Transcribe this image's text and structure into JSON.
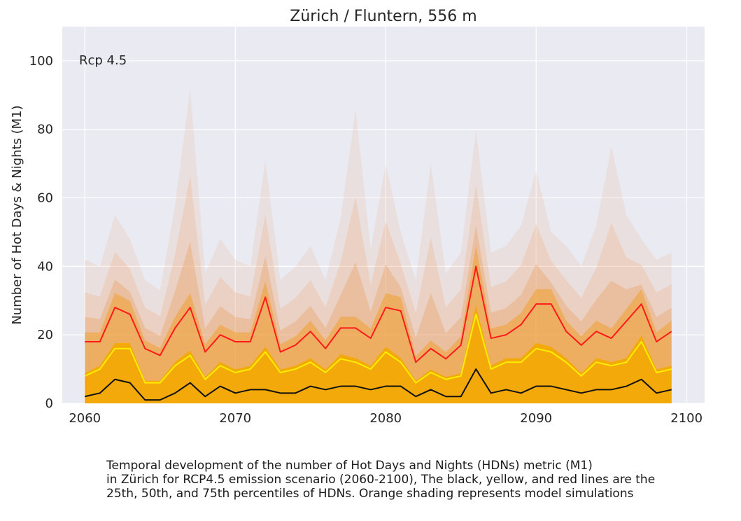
{
  "chart_data": {
    "type": "line",
    "title": "Zürich / Fluntern, 556 m",
    "annotation": "Rcp 4.5",
    "xlabel": "",
    "ylabel": "Number of Hot Days & Nights (M1)",
    "xlim": [
      2058.5,
      2101.2
    ],
    "ylim": [
      0,
      110
    ],
    "xticks": [
      2060,
      2070,
      2080,
      2090,
      2100
    ],
    "yticks": [
      0,
      20,
      40,
      60,
      80,
      100
    ],
    "grid": true,
    "x": [
      2060,
      2061,
      2062,
      2063,
      2064,
      2065,
      2066,
      2067,
      2068,
      2069,
      2070,
      2071,
      2072,
      2073,
      2074,
      2075,
      2076,
      2077,
      2078,
      2079,
      2080,
      2081,
      2082,
      2083,
      2084,
      2085,
      2086,
      2087,
      2088,
      2089,
      2090,
      2091,
      2092,
      2093,
      2094,
      2095,
      2096,
      2097,
      2098,
      2099
    ],
    "series": [
      {
        "name": "75th percentile",
        "color": "#ff1a1a",
        "values": [
          18,
          18,
          28,
          26,
          16,
          14,
          22,
          28,
          15,
          20,
          18,
          18,
          31,
          15,
          17,
          21,
          16,
          22,
          22,
          19,
          28,
          27,
          12,
          16,
          13,
          17,
          40,
          19,
          20,
          23,
          29,
          29,
          21,
          17,
          21,
          19,
          24,
          29,
          18,
          21
        ]
      },
      {
        "name": "50th percentile",
        "color": "#ffee00",
        "values": [
          8,
          10,
          16,
          16,
          6,
          6,
          11,
          14,
          7,
          11,
          9,
          10,
          15,
          9,
          10,
          12,
          9,
          13,
          12,
          10,
          15,
          12,
          6,
          9,
          7,
          8,
          26,
          10,
          12,
          12,
          16,
          15,
          12,
          8,
          12,
          11,
          12,
          18,
          9,
          10
        ]
      },
      {
        "name": "25th percentile",
        "color": "#111111",
        "values": [
          2,
          3,
          7,
          6,
          1,
          1,
          3,
          6,
          2,
          5,
          3,
          4,
          4,
          3,
          3,
          5,
          4,
          5,
          5,
          4,
          5,
          5,
          2,
          4,
          2,
          2,
          10,
          3,
          4,
          3,
          5,
          5,
          4,
          3,
          4,
          4,
          5,
          7,
          3,
          4
        ]
      }
    ],
    "shading": {
      "name": "model simulations",
      "color": "#e89a4a",
      "upper": [
        42,
        40,
        55,
        48,
        36,
        33,
        58,
        92,
        38,
        48,
        42,
        40,
        71,
        36,
        40,
        46,
        36,
        54,
        86,
        45,
        70,
        50,
        36,
        70,
        38,
        44,
        80,
        44,
        46,
        52,
        68,
        50,
        46,
        40,
        52,
        75,
        55,
        48,
        42,
        44
      ]
    }
  },
  "caption": {
    "lines": [
      "Temporal development of the number of Hot Days and Nights (HDNs) metric (M1)",
      "in Zürich for RCP4.5 emission scenario (2060-2100), The black, yellow, and red lines are the",
      "25th, 50th, and 75th percentiles of HDNs. Orange shading represents model simulations"
    ]
  }
}
